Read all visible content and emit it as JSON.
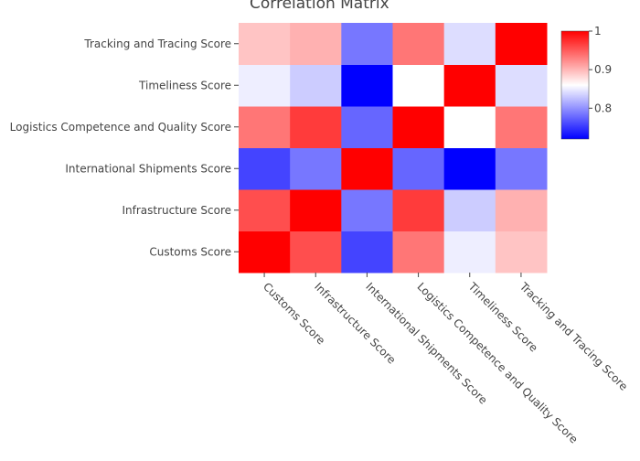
{
  "chart_data": {
    "type": "heatmap",
    "title": "Correlation Matrix",
    "x_categories": [
      "Customs Score",
      "Infrastructure Score",
      "International Shipments Score",
      "Logistics Competence and Quality Score",
      "Timeliness Score",
      "Tracking and Tracing Score"
    ],
    "y_categories": [
      "Customs Score",
      "Infrastructure Score",
      "International Shipments Score",
      "Logistics Competence and Quality Score",
      "Timeliness Score",
      "Tracking and Tracing Score"
    ],
    "values": [
      [
        1.0,
        0.96,
        0.76,
        0.94,
        0.86,
        0.9
      ],
      [
        0.96,
        1.0,
        0.79,
        0.97,
        0.84,
        0.91
      ],
      [
        0.76,
        0.79,
        1.0,
        0.78,
        0.72,
        0.79
      ],
      [
        0.94,
        0.97,
        0.78,
        1.0,
        0.87,
        0.94
      ],
      [
        0.86,
        0.84,
        0.72,
        0.87,
        1.0,
        0.85
      ],
      [
        0.9,
        0.91,
        0.79,
        0.94,
        0.85,
        1.0
      ]
    ],
    "colorscale": [
      "#0000ff",
      "#ffffff",
      "#ff0000"
    ],
    "zmin": 0.72,
    "zmid": 0.87,
    "zmax": 1.0,
    "colorbar": {
      "ticks": [
        1,
        0.9,
        0.8
      ],
      "tick_labels": [
        "1",
        "0.9",
        "0.8"
      ]
    }
  }
}
